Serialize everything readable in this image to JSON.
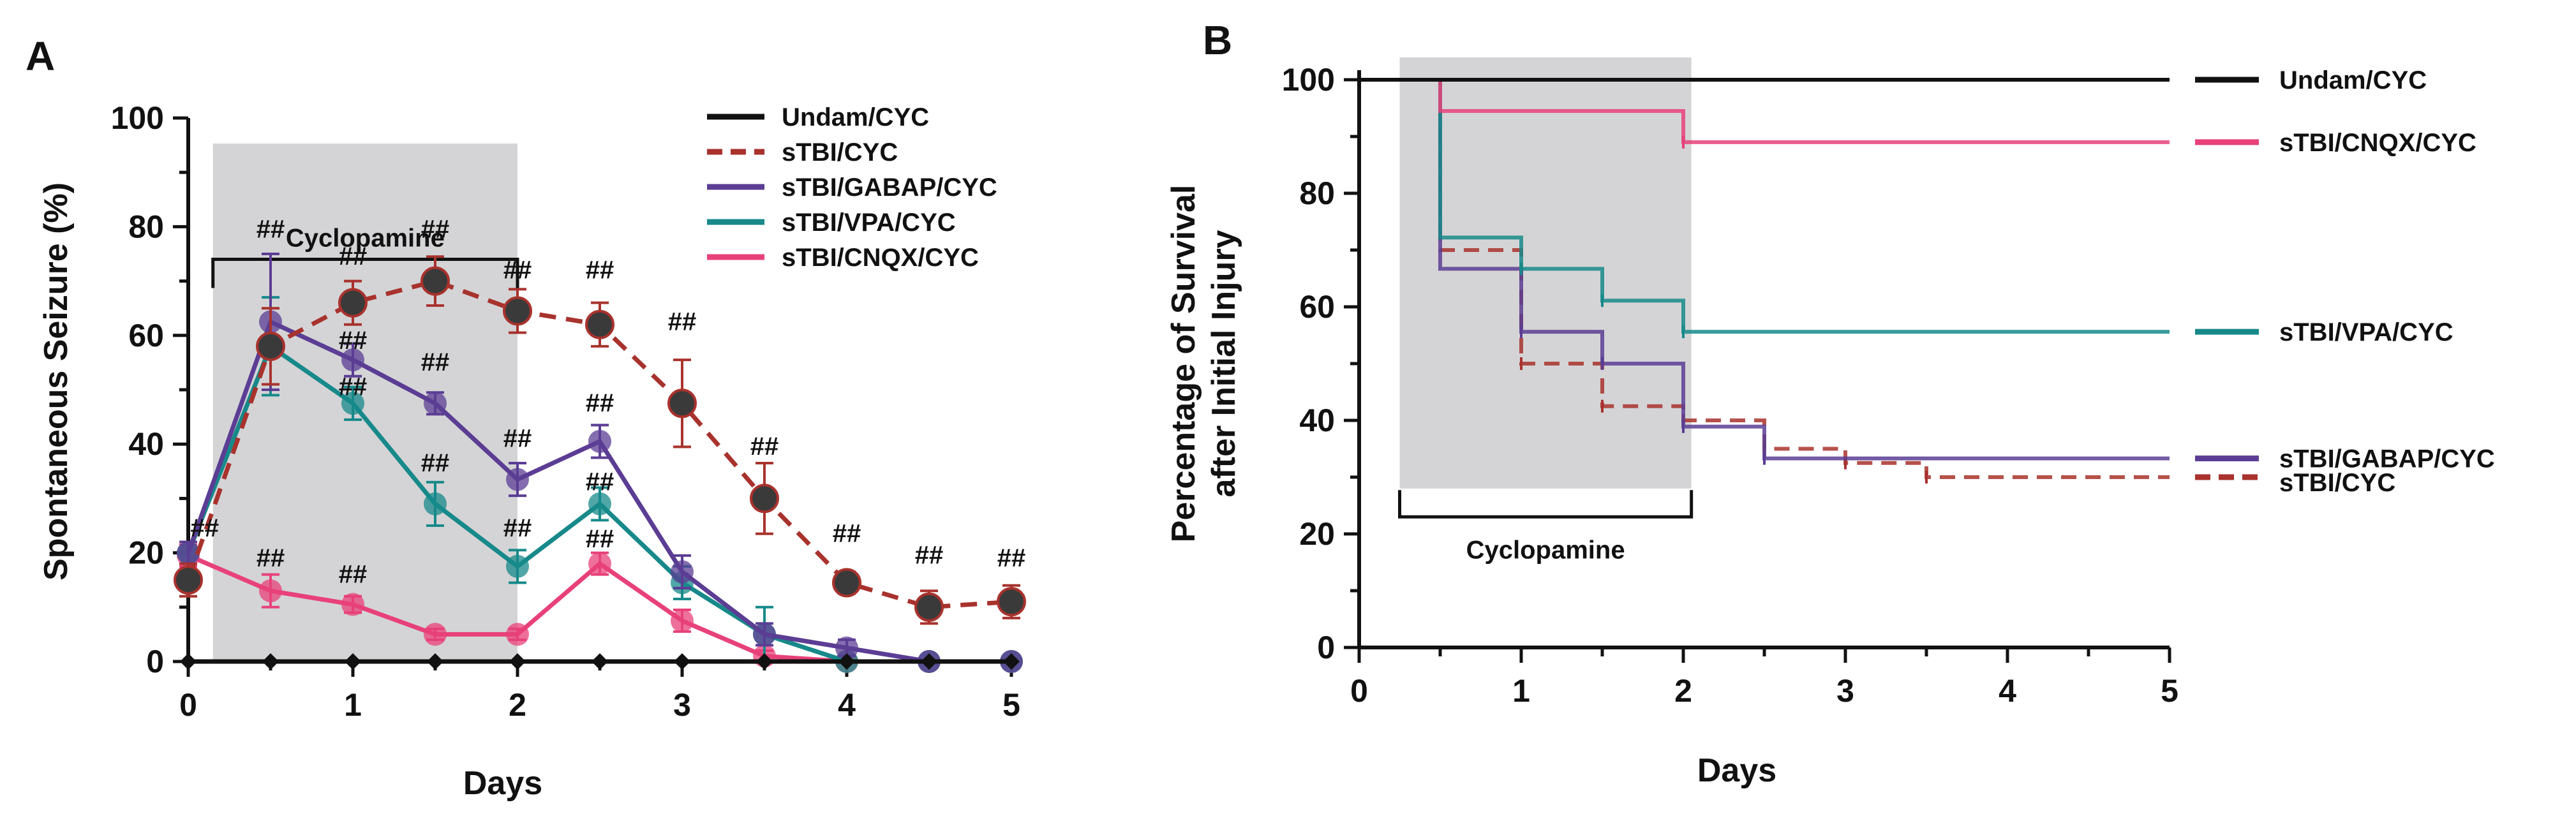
{
  "colors": {
    "undam": "#111111",
    "stbi": "#a8322d",
    "gabap": "#5b3d94",
    "vpa": "#17898a",
    "cnqx": "#e8417a",
    "band": "#d4d4d6"
  },
  "chart_data": [
    {
      "panel": "A",
      "type": "line",
      "xlabel": "Days",
      "ylabel": "Spontaneous Seizure (%)",
      "xlim": [
        0,
        5
      ],
      "ylim": [
        0,
        100
      ],
      "x_ticks": [
        "0",
        "1",
        "2",
        "3",
        "4",
        "5"
      ],
      "y_ticks": [
        "0",
        "20",
        "40",
        "60",
        "80",
        "100"
      ],
      "shaded_region": {
        "label": "Cyclopamine",
        "x_start": 0.15,
        "x_end": 2.0
      },
      "x": [
        0,
        0.5,
        1,
        1.5,
        2,
        2.5,
        3,
        3.5,
        4,
        4.5,
        5
      ],
      "series": [
        {
          "name": "Undam/CYC",
          "color_key": "undam",
          "style": "solid",
          "values": [
            0,
            0,
            0,
            0,
            0,
            0,
            0,
            0,
            0,
            0,
            0
          ],
          "errors": [
            0,
            0,
            0,
            0,
            0,
            0,
            0,
            0,
            0,
            0,
            0
          ]
        },
        {
          "name": "sTBI/CYC",
          "color_key": "stbi",
          "style": "dashed",
          "values": [
            15,
            58,
            66,
            70,
            64.5,
            62,
            47.5,
            30,
            14.5,
            10,
            11
          ],
          "errors": [
            3,
            7,
            4,
            4.5,
            4,
            4,
            8,
            6.5,
            2,
            3,
            3
          ]
        },
        {
          "name": "sTBI/GABAP/CYC",
          "color_key": "gabap",
          "style": "solid",
          "values": [
            20,
            62.5,
            55.5,
            47.5,
            33.5,
            40.5,
            16.5,
            5,
            2.5,
            0,
            0
          ],
          "errors": [
            2,
            12.5,
            3,
            2,
            3,
            3,
            3,
            2,
            1.5,
            0,
            0
          ]
        },
        {
          "name": "sTBI/VPA/CYC",
          "color_key": "vpa",
          "style": "solid",
          "values": [
            20,
            58,
            47.5,
            29,
            17.5,
            29,
            14.5,
            5,
            0,
            0,
            0
          ],
          "errors": [
            2,
            9,
            3,
            4,
            3,
            3,
            3,
            5,
            0,
            0,
            0
          ]
        },
        {
          "name": "sTBI/CNQX/CYC",
          "color_key": "cnqx",
          "style": "solid",
          "values": [
            19.5,
            13,
            10.5,
            5,
            5,
            18,
            7.5,
            1,
            0,
            0,
            0
          ],
          "errors": [
            2,
            3,
            1.5,
            1,
            1,
            2,
            2,
            1,
            0,
            0,
            0
          ]
        }
      ],
      "significance": [
        {
          "label": "##",
          "x": 0.1,
          "y": 23
        },
        {
          "label": "##",
          "x": 0.5,
          "y": 78
        },
        {
          "label": "##",
          "x": 0.5,
          "y": 17.5
        },
        {
          "label": "##",
          "x": 1.0,
          "y": 73
        },
        {
          "label": "##",
          "x": 1.0,
          "y": 57.5
        },
        {
          "label": "##",
          "x": 1.0,
          "y": 49
        },
        {
          "label": "##",
          "x": 1.0,
          "y": 14.5
        },
        {
          "label": "##",
          "x": 1.5,
          "y": 78
        },
        {
          "label": "##",
          "x": 1.5,
          "y": 53.5
        },
        {
          "label": "##",
          "x": 1.5,
          "y": 35
        },
        {
          "label": "##",
          "x": 2.0,
          "y": 70.5
        },
        {
          "label": "##",
          "x": 2.0,
          "y": 39.5
        },
        {
          "label": "##",
          "x": 2.0,
          "y": 23
        },
        {
          "label": "##",
          "x": 2.5,
          "y": 70.5
        },
        {
          "label": "##",
          "x": 2.5,
          "y": 46
        },
        {
          "label": "##",
          "x": 2.5,
          "y": 31.5
        },
        {
          "label": "##",
          "x": 2.5,
          "y": 21
        },
        {
          "label": "##",
          "x": 3.0,
          "y": 61
        },
        {
          "label": "##",
          "x": 3.5,
          "y": 38
        },
        {
          "label": "##",
          "x": 4.0,
          "y": 22
        },
        {
          "label": "##",
          "x": 4.5,
          "y": 18
        },
        {
          "label": "##",
          "x": 5.0,
          "y": 17.5
        }
      ]
    },
    {
      "panel": "B",
      "type": "line",
      "subtype": "step-survival",
      "xlabel": "Days",
      "ylabel_line1": "Percentage of Survival",
      "ylabel_line2": "after Initial Injury",
      "xlim": [
        0,
        5
      ],
      "ylim": [
        0,
        100
      ],
      "x_ticks": [
        "0",
        "1",
        "2",
        "3",
        "4",
        "5"
      ],
      "y_ticks": [
        "0",
        "20",
        "40",
        "60",
        "80",
        "100"
      ],
      "shaded_region": {
        "label": "Cyclopamine",
        "x_start": 0.25,
        "x_end": 2.05
      },
      "series": [
        {
          "name": "Undam/CYC",
          "color_key": "undam",
          "style": "solid",
          "x": [
            0,
            5
          ],
          "values": [
            100,
            100
          ]
        },
        {
          "name": "sTBI/CNQX/CYC",
          "color_key": "cnqx",
          "style": "solid",
          "x": [
            0.5,
            0.5,
            2.0,
            5
          ],
          "values": [
            100,
            94.5,
            89,
            89
          ]
        },
        {
          "name": "sTBI/VPA/CYC",
          "color_key": "vpa",
          "style": "solid",
          "x": [
            0.5,
            0.5,
            1.0,
            1.5,
            2.0,
            5
          ],
          "values": [
            100,
            72.2,
            66.7,
            61.1,
            55.6,
            55.6
          ]
        },
        {
          "name": "sTBI/GABAP/CYC",
          "color_key": "gabap",
          "style": "solid",
          "x": [
            0.5,
            0.5,
            1.0,
            1.5,
            2.0,
            2.5,
            5
          ],
          "values": [
            100,
            66.7,
            55.6,
            50,
            38.9,
            33.3,
            33.3
          ]
        },
        {
          "name": "sTBI/CYC",
          "color_key": "stbi",
          "style": "dashed",
          "x": [
            0.5,
            0.5,
            1.0,
            1.5,
            2.0,
            2.5,
            3.0,
            3.5,
            5
          ],
          "values": [
            100,
            70,
            50,
            42.5,
            40,
            35,
            32.5,
            30,
            30
          ]
        }
      ],
      "legend_order": [
        "Undam/CYC",
        "sTBI/CNQX/CYC",
        "sTBI/VPA/CYC",
        "sTBI/GABAP/CYC",
        "sTBI/CYC"
      ]
    }
  ]
}
